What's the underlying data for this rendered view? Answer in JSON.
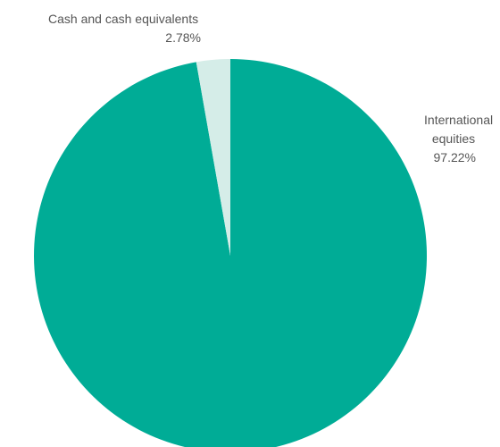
{
  "chart_data": {
    "type": "pie",
    "start_angle_deg": 0,
    "direction": "clockwise",
    "slices": [
      {
        "label_lines": [
          "International",
          "equities"
        ],
        "value": 97.22,
        "value_label": "97.22%",
        "color": "#00ac96"
      },
      {
        "label_lines": [
          "Cash and cash equivalents"
        ],
        "value": 2.78,
        "value_label": "2.78%",
        "color": "#d5ede8"
      }
    ],
    "legend": "none"
  }
}
